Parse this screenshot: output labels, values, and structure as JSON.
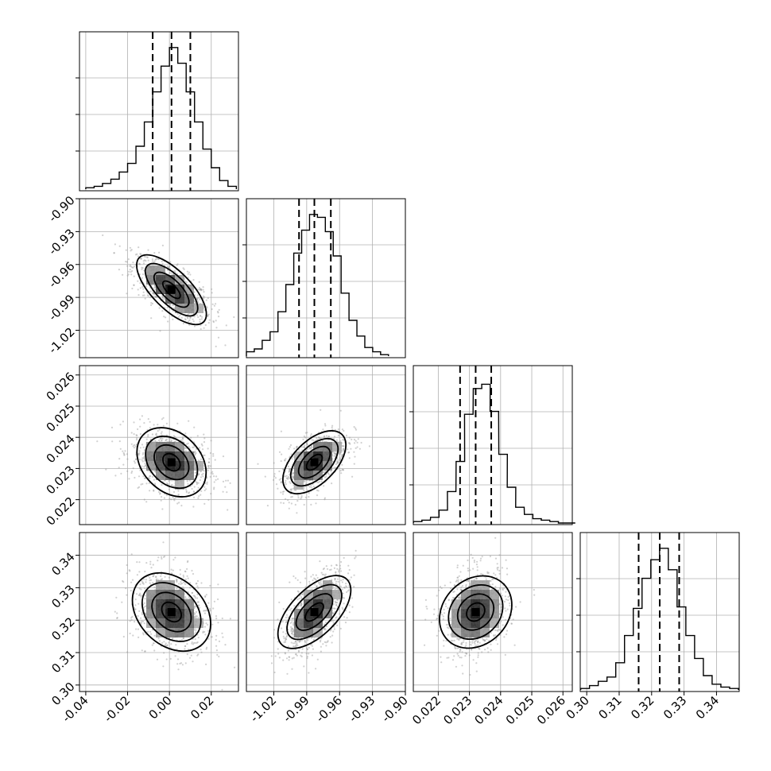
{
  "chart_data": {
    "type": "corner",
    "parameters": [
      {
        "range": [
          -0.043,
          0.033
        ],
        "ticks": [
          "-0.04",
          "-0.02",
          "0.00",
          "0.02"
        ],
        "tick_values": [
          -0.04,
          -0.02,
          0.0,
          0.02
        ],
        "median": 0.001,
        "q16": -0.008,
        "q84": 0.01
      },
      {
        "range": [
          -1.045,
          -0.9
        ],
        "ticks": [
          "-1.02",
          "-0.99",
          "-0.96",
          "-0.93",
          "-0.90"
        ],
        "tick_values": [
          -1.02,
          -0.99,
          -0.96,
          -0.93,
          -0.9
        ],
        "median": -0.983,
        "q16": -0.997,
        "q84": -0.968
      },
      {
        "range": [
          0.0212,
          0.0263
        ],
        "ticks": [
          "0.022",
          "0.023",
          "0.024",
          "0.025",
          "0.026"
        ],
        "tick_values": [
          0.022,
          0.023,
          0.024,
          0.025,
          0.026
        ],
        "median": 0.0232,
        "q16": 0.0227,
        "q84": 0.0237
      },
      {
        "range": [
          0.298,
          0.347
        ],
        "ticks": [
          "0.30",
          "0.31",
          "0.32",
          "0.33",
          "0.34"
        ],
        "tick_values": [
          0.3,
          0.31,
          0.32,
          0.33,
          0.34
        ],
        "median": 0.3225,
        "q16": 0.316,
        "q84": 0.3285
      }
    ],
    "histograms": [
      {
        "centers": [
          -0.038,
          -0.034,
          -0.03,
          -0.026,
          -0.022,
          -0.018,
          -0.014,
          -0.01,
          -0.006,
          -0.002,
          0.002,
          0.006,
          0.01,
          0.014,
          0.018,
          0.022,
          0.026,
          0.03
        ],
        "counts": [
          0.01,
          0.02,
          0.04,
          0.07,
          0.12,
          0.18,
          0.3,
          0.47,
          0.68,
          0.86,
          0.99,
          0.88,
          0.68,
          0.47,
          0.28,
          0.15,
          0.06,
          0.02
        ]
      },
      {
        "centers": [
          -1.0414,
          -1.0342,
          -1.027,
          -1.0198,
          -1.0126,
          -1.0054,
          -0.9982,
          -0.991,
          -0.9838,
          -0.9766,
          -0.9694,
          -0.9622,
          -0.955,
          -0.9478,
          -0.9406,
          -0.9334,
          -0.9262,
          -0.919
        ],
        "counts": [
          0.03,
          0.05,
          0.11,
          0.17,
          0.31,
          0.5,
          0.72,
          0.88,
          0.99,
          0.97,
          0.87,
          0.7,
          0.44,
          0.25,
          0.14,
          0.06,
          0.03,
          0.01
        ]
      },
      {
        "centers": [
          0.02134,
          0.02161,
          0.02189,
          0.02216,
          0.02243,
          0.02271,
          0.02298,
          0.02326,
          0.02353,
          0.0238,
          0.02408,
          0.02435,
          0.02462,
          0.0249,
          0.02517,
          0.02544,
          0.02572,
          0.02599,
          0.02626
        ],
        "counts": [
          0.01,
          0.02,
          0.04,
          0.09,
          0.22,
          0.43,
          0.76,
          0.94,
          0.97,
          0.78,
          0.48,
          0.25,
          0.11,
          0.06,
          0.03,
          0.02,
          0.01,
          0.0,
          0.0
        ]
      },
      {
        "centers": [
          0.2995,
          0.3022,
          0.3049,
          0.3076,
          0.3103,
          0.313,
          0.3157,
          0.3184,
          0.3211,
          0.3238,
          0.3265,
          0.3292,
          0.3319,
          0.3346,
          0.3373,
          0.34,
          0.3427,
          0.3454
        ],
        "counts": [
          0.01,
          0.03,
          0.06,
          0.09,
          0.19,
          0.38,
          0.57,
          0.78,
          0.91,
          0.99,
          0.84,
          0.58,
          0.38,
          0.22,
          0.1,
          0.04,
          0.02,
          0.01
        ]
      }
    ],
    "correlations": {
      "1-0": -0.7,
      "2-0": -0.3,
      "2-1": 0.55,
      "3-0": -0.3,
      "3-1": 0.6,
      "3-2": 0.2
    },
    "contour_levels": [
      0.5,
      1.0,
      1.5,
      2.0
    ],
    "grid": true
  }
}
